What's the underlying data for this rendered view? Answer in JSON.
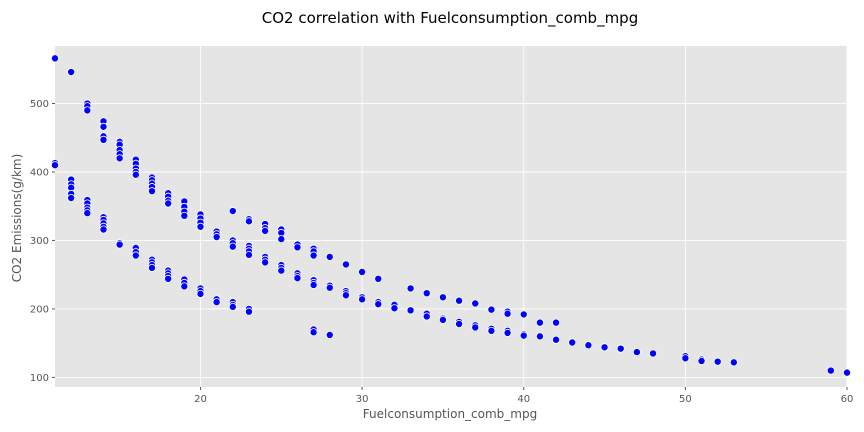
{
  "chart_data": {
    "type": "scatter",
    "title": "CO2 correlation with Fuelconsumption_comb_mpg",
    "xlabel": "Fuelconsumption_comb_mpg",
    "ylabel": "CO2 Emissions(g/km)",
    "xlim": [
      11,
      60
    ],
    "ylim": [
      86,
      584
    ],
    "xticks": [
      20,
      30,
      40,
      50,
      60
    ],
    "yticks": [
      100,
      200,
      300,
      400,
      500
    ],
    "grid": true,
    "background": "#e5e5e5",
    "marker_color": "#0000ff",
    "marker_edge": "#ffffff",
    "points": [
      [
        11,
        566
      ],
      [
        11,
        413
      ],
      [
        11,
        410
      ],
      [
        12,
        546
      ],
      [
        12,
        389
      ],
      [
        12,
        382
      ],
      [
        12,
        377
      ],
      [
        12,
        368
      ],
      [
        12,
        362
      ],
      [
        13,
        500
      ],
      [
        13,
        496
      ],
      [
        13,
        490
      ],
      [
        13,
        359
      ],
      [
        13,
        354
      ],
      [
        13,
        348
      ],
      [
        13,
        344
      ],
      [
        13,
        340
      ],
      [
        14,
        474
      ],
      [
        14,
        466
      ],
      [
        14,
        452
      ],
      [
        14,
        447
      ],
      [
        14,
        334
      ],
      [
        14,
        330
      ],
      [
        14,
        325
      ],
      [
        14,
        320
      ],
      [
        14,
        316
      ],
      [
        15,
        444
      ],
      [
        15,
        440
      ],
      [
        15,
        432
      ],
      [
        15,
        426
      ],
      [
        15,
        420
      ],
      [
        15,
        296
      ],
      [
        15,
        294
      ],
      [
        16,
        418
      ],
      [
        16,
        412
      ],
      [
        16,
        405
      ],
      [
        16,
        400
      ],
      [
        16,
        396
      ],
      [
        16,
        289
      ],
      [
        16,
        283
      ],
      [
        16,
        278
      ],
      [
        17,
        392
      ],
      [
        17,
        388
      ],
      [
        17,
        383
      ],
      [
        17,
        378
      ],
      [
        17,
        372
      ],
      [
        17,
        272
      ],
      [
        17,
        268
      ],
      [
        17,
        264
      ],
      [
        17,
        260
      ],
      [
        18,
        369
      ],
      [
        18,
        364
      ],
      [
        18,
        358
      ],
      [
        18,
        354
      ],
      [
        18,
        256
      ],
      [
        18,
        252
      ],
      [
        18,
        248
      ],
      [
        18,
        244
      ],
      [
        19,
        357
      ],
      [
        19,
        349
      ],
      [
        19,
        342
      ],
      [
        19,
        336
      ],
      [
        19,
        243
      ],
      [
        19,
        238
      ],
      [
        19,
        233
      ],
      [
        20,
        338
      ],
      [
        20,
        332
      ],
      [
        20,
        326
      ],
      [
        20,
        320
      ],
      [
        20,
        230
      ],
      [
        20,
        226
      ],
      [
        20,
        222
      ],
      [
        21,
        313
      ],
      [
        21,
        309
      ],
      [
        21,
        305
      ],
      [
        21,
        214
      ],
      [
        21,
        210
      ],
      [
        22,
        343
      ],
      [
        22,
        300
      ],
      [
        22,
        296
      ],
      [
        22,
        291
      ],
      [
        22,
        210
      ],
      [
        22,
        206
      ],
      [
        22,
        203
      ],
      [
        23,
        331
      ],
      [
        23,
        328
      ],
      [
        23,
        292
      ],
      [
        23,
        288
      ],
      [
        23,
        284
      ],
      [
        23,
        279
      ],
      [
        23,
        200
      ],
      [
        23,
        196
      ],
      [
        24,
        324
      ],
      [
        24,
        318
      ],
      [
        24,
        314
      ],
      [
        24,
        276
      ],
      [
        24,
        272
      ],
      [
        24,
        268
      ],
      [
        25,
        316
      ],
      [
        25,
        311
      ],
      [
        25,
        302
      ],
      [
        25,
        264
      ],
      [
        25,
        260
      ],
      [
        25,
        256
      ],
      [
        26,
        294
      ],
      [
        26,
        290
      ],
      [
        26,
        252
      ],
      [
        26,
        248
      ],
      [
        26,
        245
      ],
      [
        27,
        288
      ],
      [
        27,
        284
      ],
      [
        27,
        278
      ],
      [
        27,
        242
      ],
      [
        27,
        238
      ],
      [
        27,
        235
      ],
      [
        27,
        170
      ],
      [
        27,
        166
      ],
      [
        28,
        276
      ],
      [
        28,
        234
      ],
      [
        28,
        231
      ],
      [
        28,
        162
      ],
      [
        29,
        265
      ],
      [
        29,
        226
      ],
      [
        29,
        223
      ],
      [
        29,
        220
      ],
      [
        30,
        254
      ],
      [
        30,
        217
      ],
      [
        30,
        214
      ],
      [
        31,
        244
      ],
      [
        31,
        210
      ],
      [
        31,
        207
      ],
      [
        32,
        206
      ],
      [
        32,
        201
      ],
      [
        33,
        230
      ],
      [
        33,
        198
      ],
      [
        34,
        223
      ],
      [
        34,
        193
      ],
      [
        34,
        189
      ],
      [
        35,
        217
      ],
      [
        35,
        186
      ],
      [
        35,
        184
      ],
      [
        36,
        212
      ],
      [
        36,
        181
      ],
      [
        36,
        178
      ],
      [
        37,
        208
      ],
      [
        37,
        176
      ],
      [
        37,
        173
      ],
      [
        38,
        199
      ],
      [
        38,
        171
      ],
      [
        38,
        168
      ],
      [
        39,
        196
      ],
      [
        39,
        193
      ],
      [
        39,
        168
      ],
      [
        39,
        165
      ],
      [
        40,
        192
      ],
      [
        40,
        163
      ],
      [
        40,
        161
      ],
      [
        41,
        180
      ],
      [
        41,
        160
      ],
      [
        42,
        180
      ],
      [
        42,
        155
      ],
      [
        43,
        151
      ],
      [
        44,
        147
      ],
      [
        45,
        144
      ],
      [
        46,
        142
      ],
      [
        47,
        137
      ],
      [
        48,
        135
      ],
      [
        50,
        131
      ],
      [
        50,
        128
      ],
      [
        51,
        126
      ],
      [
        51,
        124
      ],
      [
        52,
        123
      ],
      [
        53,
        122
      ],
      [
        59,
        110
      ],
      [
        60,
        107
      ]
    ]
  }
}
